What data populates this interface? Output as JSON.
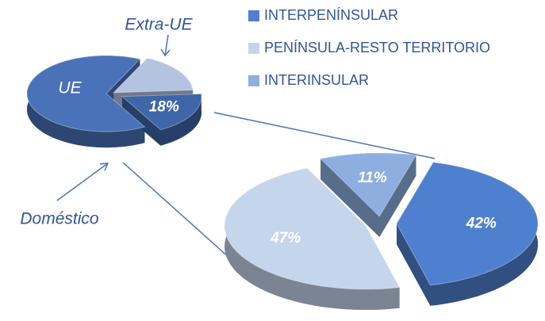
{
  "chart_data": [
    {
      "type": "pie",
      "categories": [
        "UE",
        "Extra-UE",
        "Doméstico"
      ],
      "values": [
        65,
        17,
        18
      ],
      "value_labels": [
        null,
        null,
        "18%"
      ],
      "colors": [
        "#4a72b8",
        "#b3c3e0",
        "#3e66a8"
      ]
    },
    {
      "type": "pie",
      "categories": [
        "INTERPENÍNSULAR",
        "PENÍNSULA-RESTO TERRITORIO",
        "INTERINSULAR"
      ],
      "values": [
        42,
        47,
        11
      ],
      "value_labels": [
        "42%",
        "47%",
        "11%"
      ],
      "colors": [
        "#4f7fcf",
        "#c5d5ec",
        "#8eaee0"
      ],
      "legend": "top-right"
    }
  ]
}
